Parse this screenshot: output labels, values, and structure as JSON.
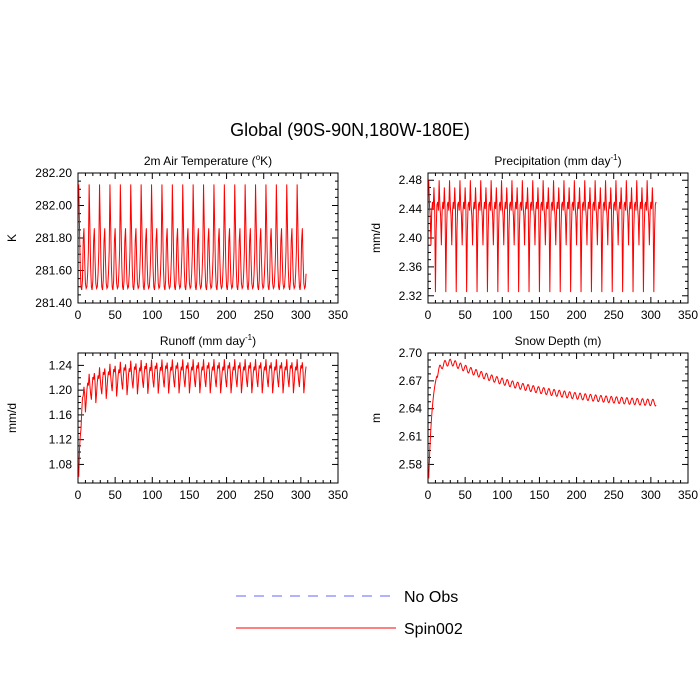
{
  "title": "Global (90S-90N,180W-180E)",
  "colors": {
    "obs": "#6666ff",
    "model": "#ff0000",
    "axis": "#000000"
  },
  "legend": {
    "placement": "bottom-center",
    "entries": [
      {
        "label": "No Obs",
        "style": "dashed",
        "color": "#6666ff"
      },
      {
        "label": "Spin002",
        "style": "solid",
        "color": "#ff0000"
      }
    ]
  },
  "chart_data": [
    {
      "id": "temp",
      "type": "line",
      "title": "2m Air Temperature (",
      "title_sup": "o",
      "title_end": "K)",
      "ylabel": "K",
      "xlim": [
        0,
        350
      ],
      "ylim": [
        281.4,
        282.2
      ],
      "xticks": [
        "0",
        "50",
        "100",
        "150",
        "200",
        "250",
        "300",
        "350"
      ],
      "yticks": [
        "281.40",
        "281.60",
        "281.80",
        "282.00",
        "282.20"
      ],
      "series": [
        {
          "name": "Spin002",
          "x_start": 1,
          "x_end": 307,
          "period": 7,
          "cycle": [
            282.13,
            281.87,
            281.62,
            281.5,
            281.48,
            281.54,
            281.78
          ],
          "cycle2": [
            281.86,
            281.66,
            281.52,
            281.49,
            281.5,
            281.58,
            281.72
          ],
          "alternate": true,
          "spin_up": null
        }
      ]
    },
    {
      "id": "precip",
      "type": "line",
      "title": "Precipitation (mm day",
      "title_sup": "-1",
      "title_end": ")",
      "ylabel": "mm/d",
      "xlim": [
        0,
        350
      ],
      "ylim": [
        2.31,
        2.49
      ],
      "xticks": [
        "0",
        "50",
        "100",
        "150",
        "200",
        "250",
        "300",
        "350"
      ],
      "yticks": [
        "2.32",
        "2.36",
        "2.40",
        "2.44",
        "2.48"
      ],
      "series": [
        {
          "name": "Spin002",
          "x_start": 1,
          "x_end": 307,
          "period": 7,
          "cycle": [
            2.48,
            2.445,
            2.43,
            2.39,
            2.437,
            2.45,
            2.44
          ],
          "cycle2": [
            2.47,
            2.44,
            2.325,
            2.41,
            2.446,
            2.45,
            2.438
          ],
          "alternate": true,
          "spin_up": null
        }
      ]
    },
    {
      "id": "runoff",
      "type": "line",
      "title": "Runoff (mm day",
      "title_sup": "-1",
      "title_end": ")",
      "ylabel": "mm/d",
      "xlim": [
        0,
        350
      ],
      "ylim": [
        1.05,
        1.26
      ],
      "xticks": [
        "0",
        "50",
        "100",
        "150",
        "200",
        "250",
        "300",
        "350"
      ],
      "yticks": [
        "1.08",
        "1.12",
        "1.16",
        "1.20",
        "1.24"
      ],
      "series": [
        {
          "name": "Spin002",
          "x_start": 1,
          "x_end": 307,
          "period": 7,
          "cycle": [
            1.25,
            1.23,
            1.215,
            1.205,
            1.225,
            1.24,
            1.235
          ],
          "cycle2": [
            1.245,
            1.228,
            1.195,
            1.21,
            1.228,
            1.238,
            1.232
          ],
          "alternate": true,
          "spin_up": {
            "start": 1.06,
            "tau": 2.5,
            "dip": 0.04,
            "dip_tau": 25
          }
        }
      ]
    },
    {
      "id": "snow",
      "type": "line",
      "title": "Snow Depth (m)",
      "title_sup": "",
      "title_end": "",
      "ylabel": "m",
      "xlim": [
        0,
        350
      ],
      "ylim": [
        2.56,
        2.7
      ],
      "xticks": [
        "0",
        "50",
        "100",
        "150",
        "200",
        "250",
        "300",
        "350"
      ],
      "yticks": [
        "2.58",
        "2.61",
        "2.64",
        "2.67",
        "2.70"
      ],
      "series": [
        {
          "name": "Spin002",
          "x_start": 1,
          "x_end": 307,
          "period": 7,
          "snow": {
            "start": 2.565,
            "peak": 2.69,
            "peak_x": 32,
            "end": 2.641,
            "amp": 0.0035
          }
        }
      ]
    }
  ]
}
